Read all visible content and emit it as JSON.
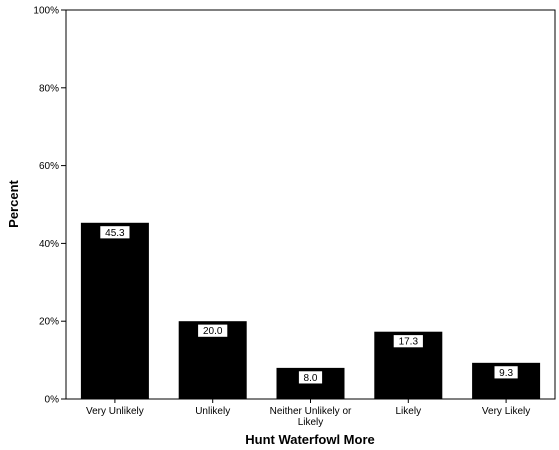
{
  "chart_data": {
    "type": "bar",
    "xlabel": "Hunt Waterfowl More",
    "ylabel": "Percent",
    "categories": [
      "Very Unlikely",
      "Unlikely",
      "Neither Unlikely or Likely",
      "Likely",
      "Very Likely"
    ],
    "category_label_lines": [
      [
        "Very Unlikely"
      ],
      [
        "Unlikely"
      ],
      [
        "Neither Unlikely or",
        "Likely"
      ],
      [
        "Likely"
      ],
      [
        "Very Likely"
      ]
    ],
    "values": [
      45.3,
      20.0,
      8.0,
      17.3,
      9.3
    ],
    "data_labels": [
      "45.3",
      "20.0",
      "8.0",
      "17.3",
      "9.3"
    ],
    "ylim": [
      0,
      100
    ],
    "yticks": [
      0,
      20,
      40,
      60,
      80,
      100
    ],
    "ytick_labels": [
      "0%",
      "20%",
      "40%",
      "60%",
      "80%",
      "100%"
    ],
    "grid": false,
    "bar_color": "#000000",
    "label_box_color": "#ffffff"
  }
}
